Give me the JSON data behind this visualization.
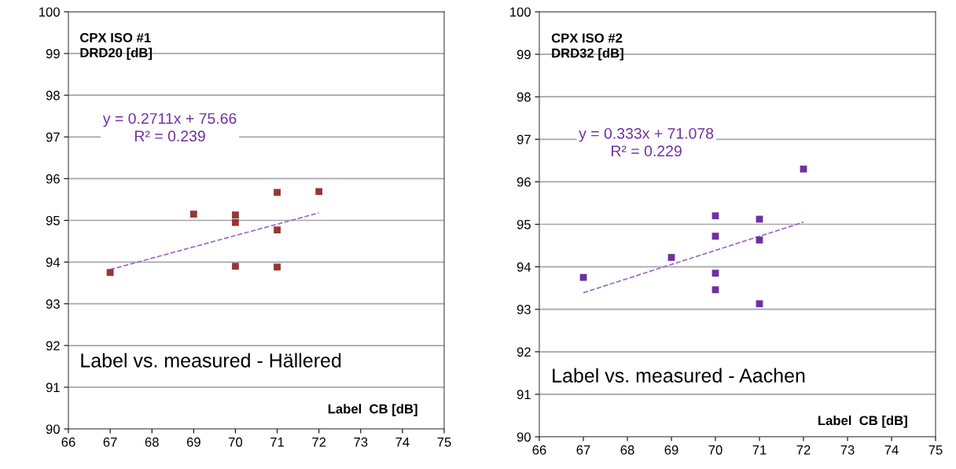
{
  "chart_data": [
    {
      "type": "scatter",
      "xlabel": "Label  CB [dB]",
      "xlim": [
        66,
        75
      ],
      "xticks": [
        66,
        67,
        68,
        69,
        70,
        71,
        72,
        73,
        74,
        75
      ],
      "ylim": [
        90,
        100
      ],
      "yticks": [
        90,
        91,
        92,
        93,
        94,
        95,
        96,
        97,
        98,
        99,
        100
      ],
      "grid": "y",
      "legend": false,
      "annotations": [
        "CPX ISO #1\nDRD20 [dB]",
        "y = 0.2711x + 75.66\nR² = 0.239",
        "Label vs. measured - Hällered"
      ],
      "series": [
        {
          "marker": "square",
          "color": "#953735",
          "x": [
            67,
            69,
            70,
            70,
            70,
            71,
            71,
            71,
            72
          ],
          "values": [
            93.75,
            95.15,
            95.13,
            94.95,
            93.9,
            95.67,
            94.77,
            93.88,
            95.69
          ]
        },
        {
          "type": "line",
          "line_style": "dashed",
          "marker": "none",
          "color": "#9966cc",
          "x": [
            67,
            72
          ],
          "values": [
            93.82,
            95.18
          ]
        }
      ]
    },
    {
      "type": "scatter",
      "xlabel": "Label  CB [dB]",
      "xlim": [
        66,
        75
      ],
      "xticks": [
        66,
        67,
        68,
        69,
        70,
        71,
        72,
        73,
        74,
        75
      ],
      "ylim": [
        90,
        100
      ],
      "yticks": [
        90,
        91,
        92,
        93,
        94,
        95,
        96,
        97,
        98,
        99,
        100
      ],
      "grid": "y",
      "legend": false,
      "annotations": [
        "CPX ISO #2\nDRD32 [dB]",
        "y = 0.333x + 71.078\nR² = 0.229",
        "Label vs. measured - Aachen"
      ],
      "series": [
        {
          "marker": "square",
          "color": "#7030a0",
          "x": [
            67,
            69,
            70,
            70,
            70,
            70,
            71,
            71,
            71,
            72
          ],
          "values": [
            93.75,
            94.22,
            95.2,
            94.72,
            93.85,
            93.46,
            95.12,
            94.63,
            93.13,
            96.3
          ]
        },
        {
          "type": "line",
          "line_style": "dashed",
          "marker": "none",
          "color": "#9966cc",
          "x": [
            67,
            72
          ],
          "values": [
            93.39,
            95.05
          ]
        }
      ]
    }
  ]
}
